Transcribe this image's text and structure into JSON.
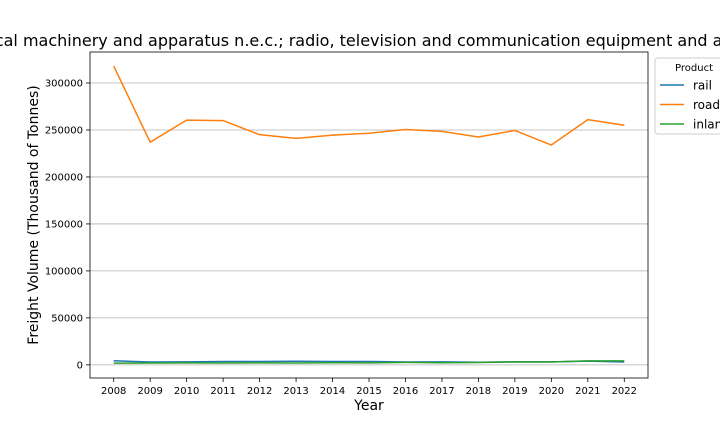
{
  "chart_data": {
    "type": "line",
    "title": "Electrical machinery and apparatus n.e.c.; radio, television and communication equipment and apparatus",
    "xlabel": "Year",
    "ylabel": "Freight Volume (Thousand of Tonnes)",
    "x": [
      2008,
      2009,
      2010,
      2011,
      2012,
      2013,
      2014,
      2015,
      2016,
      2017,
      2018,
      2019,
      2020,
      2021,
      2022
    ],
    "yticks": [
      0,
      50000,
      100000,
      150000,
      200000,
      250000,
      300000
    ],
    "ytick_labels": [
      "0",
      "50000",
      "100000",
      "150000",
      "200000",
      "250000",
      "300000"
    ],
    "ylim": [
      -14000,
      333000
    ],
    "xlim": [
      2007.35,
      2022.65
    ],
    "grid": "y-axis horizontal lines",
    "legend": {
      "title": "Product",
      "placement": "outside top-right",
      "entries": [
        "rail",
        "road",
        "inland_waterway"
      ]
    },
    "series": [
      {
        "name": "rail",
        "color": "#1f77b4",
        "values": [
          4300,
          3000,
          3100,
          3600,
          3500,
          3800,
          3500,
          3600,
          3000,
          3200,
          2700,
          3200,
          3100,
          4000,
          3000
        ]
      },
      {
        "name": "road",
        "color": "#ff7f0e",
        "values": [
          318000,
          237000,
          260500,
          260000,
          245000,
          241000,
          244500,
          246500,
          250500,
          248500,
          242500,
          249500,
          234000,
          261000,
          255000
        ]
      },
      {
        "name": "inland_waterway",
        "color": "#2ca02c",
        "values": [
          1800,
          2000,
          2100,
          2000,
          2100,
          2000,
          2200,
          2100,
          2600,
          2300,
          2500,
          3200,
          3000,
          4200,
          4200
        ]
      }
    ]
  }
}
